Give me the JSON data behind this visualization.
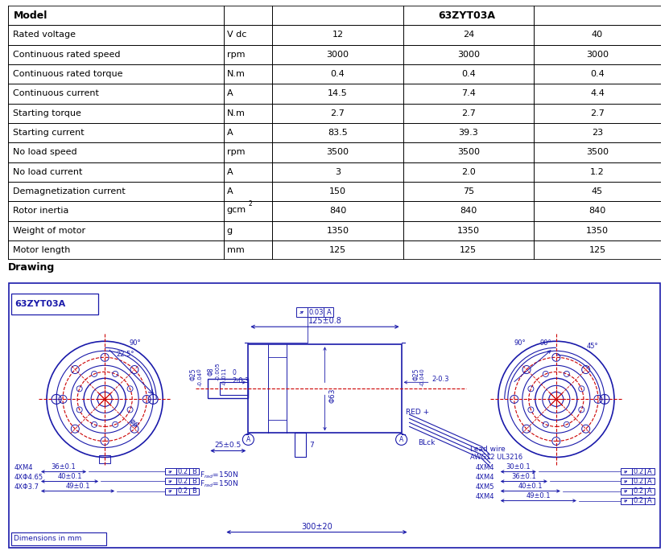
{
  "rows": [
    [
      "Rated voltage",
      "V dc",
      "12",
      "24",
      "40"
    ],
    [
      "Continuous rated speed",
      "rpm",
      "3000",
      "3000",
      "3000"
    ],
    [
      "Continuous rated torque",
      "N.m",
      "0.4",
      "0.4",
      "0.4"
    ],
    [
      "Continuous current",
      "A",
      "14.5",
      "7.4",
      "4.4"
    ],
    [
      "Starting torque",
      "N.m",
      "2.7",
      "2.7",
      "2.7"
    ],
    [
      "Starting current",
      "A",
      "83.5",
      "39.3",
      "23"
    ],
    [
      "No load speed",
      "rpm",
      "3500",
      "3500",
      "3500"
    ],
    [
      "No load current",
      "A",
      "3",
      "2.0",
      "1.2"
    ],
    [
      "Demagnetization current",
      "A",
      "150",
      "75",
      "45"
    ],
    [
      "Rotor inertia",
      "gcm2",
      "840",
      "840",
      "840"
    ],
    [
      "Weight of motor",
      "g",
      "1350",
      "1350",
      "1350"
    ],
    [
      "Motor length",
      "mm",
      "125",
      "125",
      "125"
    ]
  ],
  "drawing_title": "63ZYT03A",
  "bg_color": "#ffffff",
  "BLUE": "#1a1aaa",
  "RED": "#cc0000",
  "BLACK": "#000000"
}
